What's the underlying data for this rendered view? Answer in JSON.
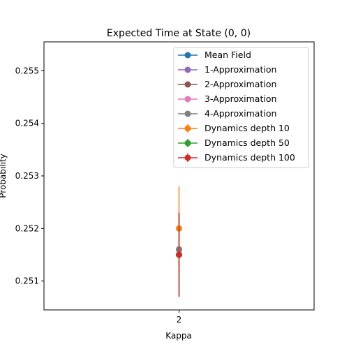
{
  "chart_data": {
    "type": "scatter",
    "title": "Expected Time at State (0, 0)",
    "xlabel": "Kappa",
    "ylabel": "Probability",
    "categories": [
      "2"
    ],
    "ylim": [
      0.25045,
      0.25555
    ],
    "yticks": [
      "0.251",
      "0.252",
      "0.253",
      "0.254",
      "0.255"
    ],
    "ytick_values": [
      0.251,
      0.252,
      0.253,
      0.254,
      0.255
    ],
    "grid": false,
    "legend_position": "top-right",
    "series": [
      {
        "name": "Mean Field",
        "color": "#1f77b4",
        "values": [
          0.2516
        ]
      },
      {
        "name": "1-Approximation",
        "color": "#9467bd",
        "values": [
          0.2516
        ]
      },
      {
        "name": "2-Approximation",
        "color": "#8c564b",
        "values": [
          0.2516
        ]
      },
      {
        "name": "3-Approximation",
        "color": "#e377c2",
        "values": [
          0.2516
        ]
      },
      {
        "name": "4-Approximation",
        "color": "#7f7f7f",
        "values": [
          0.2516
        ]
      },
      {
        "name": "Dynamics depth 10",
        "color": "#ff7f0e",
        "values": [
          0.252
        ],
        "errors": [
          0.0008
        ]
      },
      {
        "name": "Dynamics depth 50",
        "color": "#2ca02c",
        "values": [
          0.2515
        ],
        "errors": [
          0.0008
        ]
      },
      {
        "name": "Dynamics depth 100",
        "color": "#d62728",
        "values": [
          0.2515
        ],
        "errors": [
          0.0008
        ]
      }
    ]
  }
}
